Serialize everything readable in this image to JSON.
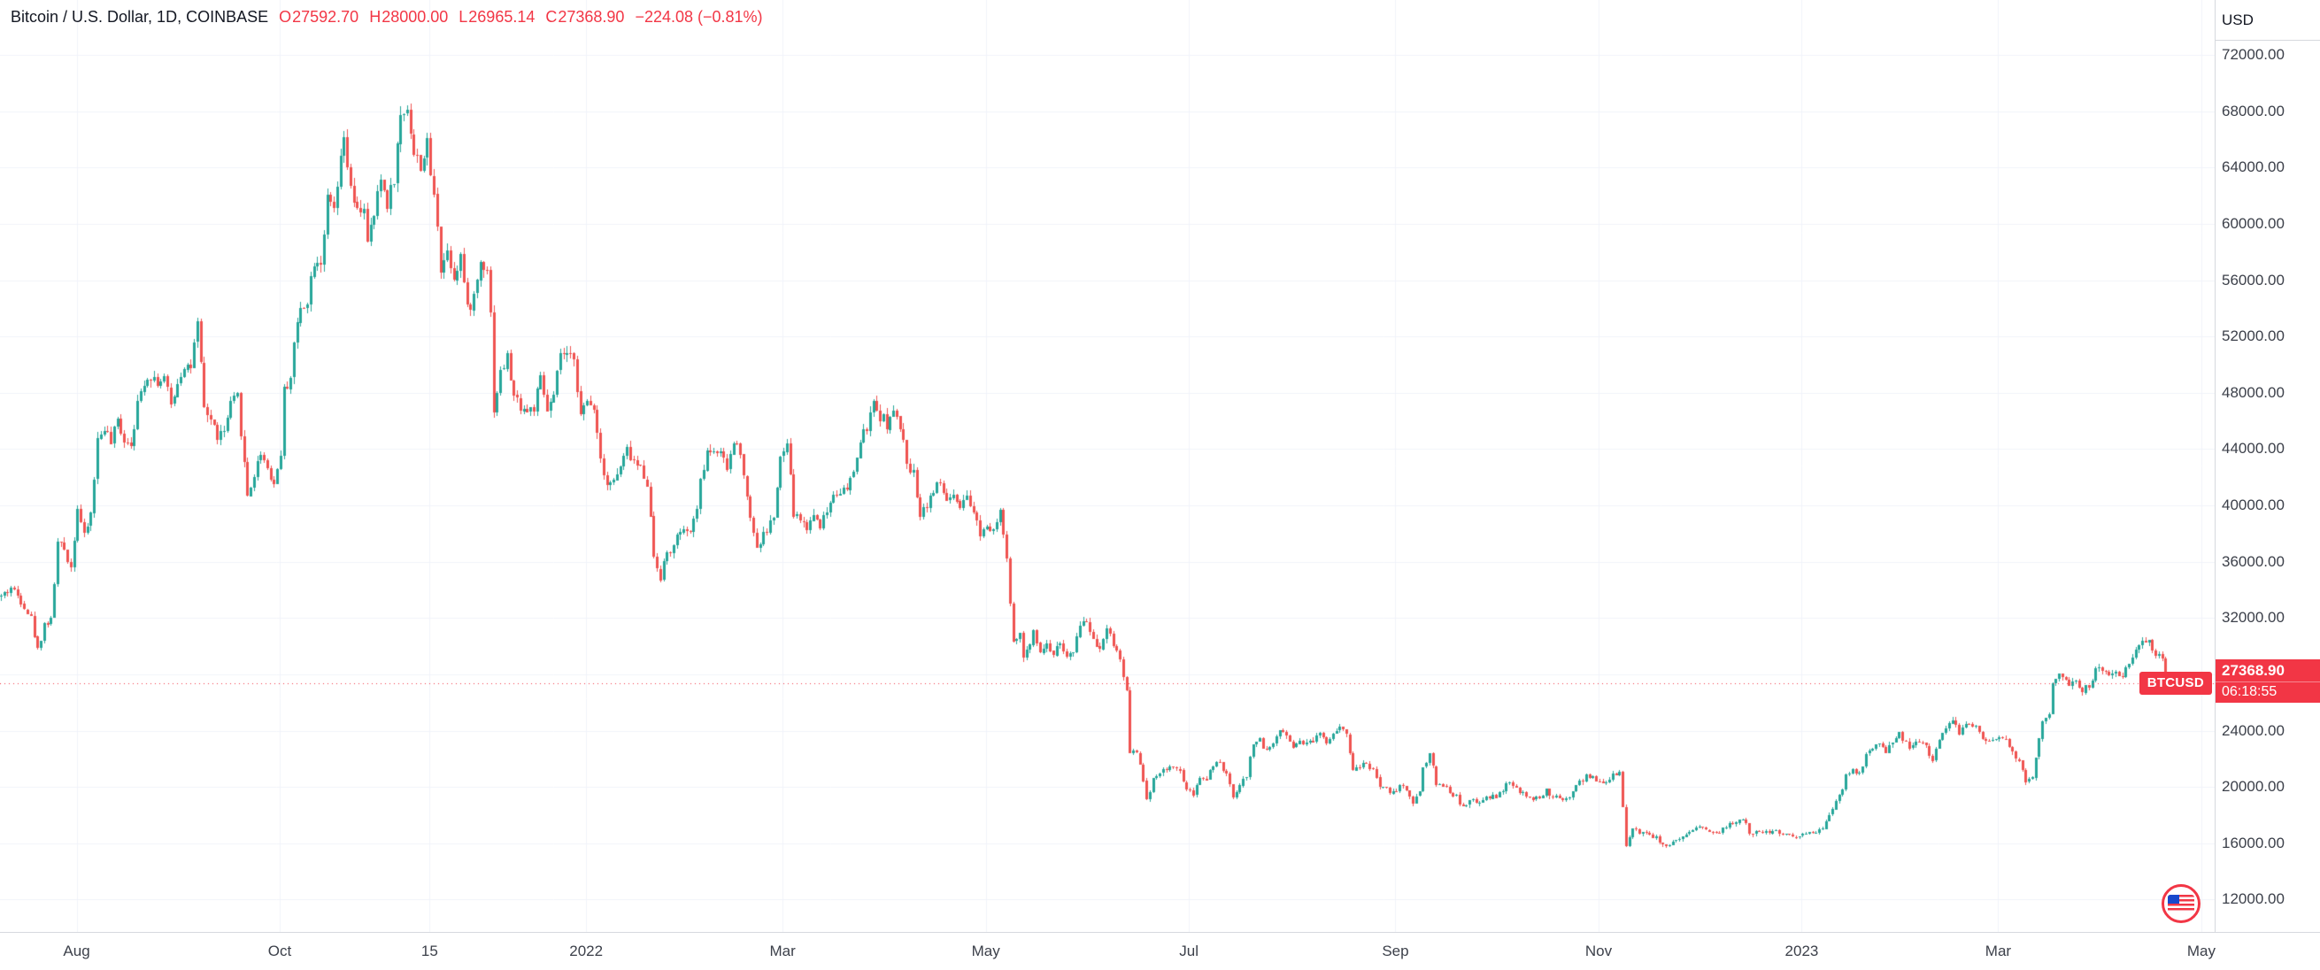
{
  "legend": {
    "title": "Bitcoin / U.S. Dollar, 1D, COINBASE",
    "open_label": "O",
    "open": "27592.70",
    "high_label": "H",
    "high": "28000.00",
    "low_label": "L",
    "low": "26965.14",
    "close_label": "C",
    "close": "27368.90",
    "change": "−224.08 (−0.81%)"
  },
  "price_axis": {
    "currency": "USD",
    "labels": [
      "72000.00",
      "68000.00",
      "64000.00",
      "60000.00",
      "56000.00",
      "52000.00",
      "48000.00",
      "44000.00",
      "40000.00",
      "36000.00",
      "32000.00",
      "28000.00",
      "24000.00",
      "20000.00",
      "16000.00",
      "12000.00"
    ]
  },
  "price_line": {
    "symbol_tag": "BTCUSD",
    "value": "27368.90",
    "countdown": "06:18:55"
  },
  "time_axis": {
    "labels": [
      {
        "text": "Aug",
        "day": 23
      },
      {
        "text": "Oct",
        "day": 84
      },
      {
        "text": "15",
        "day": 129
      },
      {
        "text": "2022",
        "day": 176
      },
      {
        "text": "Mar",
        "day": 235
      },
      {
        "text": "May",
        "day": 296
      },
      {
        "text": "Jul",
        "day": 357
      },
      {
        "text": "Sep",
        "day": 419
      },
      {
        "text": "Nov",
        "day": 480
      },
      {
        "text": "2023",
        "day": 541
      },
      {
        "text": "Mar",
        "day": 600
      },
      {
        "text": "May",
        "day": 661
      }
    ]
  },
  "colors": {
    "up": "#26a69a",
    "down": "#ef5350",
    "accent_red": "#f23645",
    "grid": "#f0f3fa",
    "axis_border": "#d6d9de",
    "axis_text": "#3c404a",
    "title_text": "#131722"
  },
  "chart_data": {
    "type": "candlestick",
    "symbol": "BTCUSD",
    "timeframe": "1D",
    "exchange": "COINBASE",
    "title": "Bitcoin / U.S. Dollar",
    "start_date": "2021-07-09",
    "days": 651,
    "visible_days": 665,
    "ylim": [
      9700,
      75900
    ],
    "grid_prices": [
      72000,
      68000,
      64000,
      60000,
      56000,
      52000,
      48000,
      44000,
      40000,
      36000,
      32000,
      28000,
      24000,
      20000,
      16000,
      12000
    ],
    "last_price": 27368.9,
    "last_candle": {
      "open": 27592.7,
      "high": 28000.0,
      "low": 26965.14,
      "close": 27368.9
    },
    "seed": 42,
    "close_jitter": 0.018,
    "wick_jitter": 0.014,
    "anchors": [
      [
        0,
        33500
      ],
      [
        3,
        34200
      ],
      [
        6,
        33300
      ],
      [
        9,
        32000
      ],
      [
        11,
        29700
      ],
      [
        13,
        31600
      ],
      [
        15,
        31800
      ],
      [
        17,
        37300
      ],
      [
        19,
        36900
      ],
      [
        21,
        35600
      ],
      [
        23,
        39900
      ],
      [
        25,
        37700
      ],
      [
        27,
        39400
      ],
      [
        29,
        44600
      ],
      [
        31,
        45600
      ],
      [
        33,
        44400
      ],
      [
        35,
        46000
      ],
      [
        37,
        44700
      ],
      [
        39,
        44500
      ],
      [
        41,
        47100
      ],
      [
        43,
        48900
      ],
      [
        45,
        49300
      ],
      [
        47,
        48800
      ],
      [
        49,
        49000
      ],
      [
        51,
        47100
      ],
      [
        53,
        48800
      ],
      [
        55,
        50000
      ],
      [
        57,
        49900
      ],
      [
        59,
        52700
      ],
      [
        61,
        46900
      ],
      [
        63,
        46100
      ],
      [
        65,
        44900
      ],
      [
        67,
        45200
      ],
      [
        69,
        47100
      ],
      [
        71,
        47700
      ],
      [
        73,
        42900
      ],
      [
        74,
        40700
      ],
      [
        76,
        42200
      ],
      [
        78,
        43800
      ],
      [
        80,
        42700
      ],
      [
        82,
        41500
      ],
      [
        84,
        43800
      ],
      [
        85,
        48100
      ],
      [
        87,
        49200
      ],
      [
        88,
        51500
      ],
      [
        90,
        54000
      ],
      [
        92,
        54700
      ],
      [
        94,
        57500
      ],
      [
        96,
        57400
      ],
      [
        98,
        61600
      ],
      [
        100,
        60900
      ],
      [
        102,
        64300
      ],
      [
        103,
        66000
      ],
      [
        105,
        62300
      ],
      [
        107,
        60700
      ],
      [
        109,
        61300
      ],
      [
        110,
        58500
      ],
      [
        112,
        60600
      ],
      [
        114,
        63200
      ],
      [
        116,
        61500
      ],
      [
        118,
        63300
      ],
      [
        120,
        67600
      ],
      [
        122,
        68400
      ],
      [
        124,
        64900
      ],
      [
        126,
        64200
      ],
      [
        128,
        65500
      ],
      [
        129,
        63600
      ],
      [
        131,
        60100
      ],
      [
        132,
        56900
      ],
      [
        134,
        58100
      ],
      [
        136,
        56300
      ],
      [
        138,
        57800
      ],
      [
        140,
        53800
      ],
      [
        142,
        54800
      ],
      [
        144,
        57300
      ],
      [
        146,
        57000
      ],
      [
        147,
        53600
      ],
      [
        148,
        46900
      ],
      [
        150,
        49400
      ],
      [
        152,
        50500
      ],
      [
        154,
        47700
      ],
      [
        156,
        47100
      ],
      [
        158,
        46700
      ],
      [
        160,
        46900
      ],
      [
        162,
        48900
      ],
      [
        164,
        46700
      ],
      [
        166,
        47600
      ],
      [
        168,
        50800
      ],
      [
        170,
        50400
      ],
      [
        172,
        50700
      ],
      [
        174,
        46300
      ],
      [
        176,
        47300
      ],
      [
        178,
        47100
      ],
      [
        180,
        43400
      ],
      [
        182,
        41600
      ],
      [
        184,
        41700
      ],
      [
        186,
        42700
      ],
      [
        188,
        43900
      ],
      [
        190,
        43100
      ],
      [
        192,
        42600
      ],
      [
        194,
        41700
      ],
      [
        196,
        36400
      ],
      [
        198,
        35000
      ],
      [
        200,
        36600
      ],
      [
        202,
        37000
      ],
      [
        204,
        38200
      ],
      [
        206,
        37900
      ],
      [
        208,
        38700
      ],
      [
        210,
        41500
      ],
      [
        212,
        43900
      ],
      [
        214,
        44000
      ],
      [
        216,
        43500
      ],
      [
        218,
        42600
      ],
      [
        220,
        44500
      ],
      [
        222,
        44000
      ],
      [
        224,
        40500
      ],
      [
        227,
        37000
      ],
      [
        230,
        38300
      ],
      [
        232,
        39200
      ],
      [
        234,
        43200
      ],
      [
        236,
        44400
      ],
      [
        238,
        39400
      ],
      [
        240,
        39000
      ],
      [
        242,
        38400
      ],
      [
        244,
        39400
      ],
      [
        246,
        38700
      ],
      [
        248,
        39600
      ],
      [
        250,
        40900
      ],
      [
        252,
        41100
      ],
      [
        254,
        41000
      ],
      [
        256,
        42400
      ],
      [
        258,
        44500
      ],
      [
        260,
        45600
      ],
      [
        262,
        47100
      ],
      [
        264,
        46400
      ],
      [
        266,
        45800
      ],
      [
        268,
        46600
      ],
      [
        270,
        45500
      ],
      [
        272,
        43200
      ],
      [
        274,
        42200
      ],
      [
        276,
        39500
      ],
      [
        278,
        40100
      ],
      [
        280,
        41100
      ],
      [
        282,
        41500
      ],
      [
        284,
        40400
      ],
      [
        286,
        40500
      ],
      [
        288,
        39700
      ],
      [
        290,
        40400
      ],
      [
        292,
        39500
      ],
      [
        294,
        38100
      ],
      [
        296,
        38600
      ],
      [
        298,
        38500
      ],
      [
        300,
        39700
      ],
      [
        302,
        36000
      ],
      [
        304,
        30100
      ],
      [
        306,
        31000
      ],
      [
        307,
        29000
      ],
      [
        309,
        30100
      ],
      [
        310,
        31300
      ],
      [
        312,
        29700
      ],
      [
        314,
        30100
      ],
      [
        316,
        29500
      ],
      [
        318,
        30300
      ],
      [
        320,
        29200
      ],
      [
        322,
        29400
      ],
      [
        324,
        31700
      ],
      [
        326,
        31800
      ],
      [
        328,
        30500
      ],
      [
        330,
        29900
      ],
      [
        332,
        31400
      ],
      [
        334,
        30200
      ],
      [
        336,
        29100
      ],
      [
        338,
        26800
      ],
      [
        339,
        22500
      ],
      [
        341,
        22600
      ],
      [
        343,
        20400
      ],
      [
        344,
        19000
      ],
      [
        346,
        20600
      ],
      [
        348,
        21100
      ],
      [
        350,
        21200
      ],
      [
        352,
        21500
      ],
      [
        354,
        21000
      ],
      [
        356,
        19900
      ],
      [
        358,
        19300
      ],
      [
        360,
        20700
      ],
      [
        362,
        20600
      ],
      [
        364,
        21600
      ],
      [
        366,
        21600
      ],
      [
        368,
        20800
      ],
      [
        370,
        19300
      ],
      [
        372,
        20100
      ],
      [
        374,
        20800
      ],
      [
        376,
        23200
      ],
      [
        378,
        23300
      ],
      [
        380,
        22500
      ],
      [
        382,
        23200
      ],
      [
        384,
        24000
      ],
      [
        386,
        23800
      ],
      [
        388,
        22800
      ],
      [
        390,
        23300
      ],
      [
        392,
        23200
      ],
      [
        394,
        23300
      ],
      [
        396,
        23800
      ],
      [
        398,
        23200
      ],
      [
        400,
        23900
      ],
      [
        402,
        24300
      ],
      [
        404,
        23900
      ],
      [
        406,
        21100
      ],
      [
        408,
        21500
      ],
      [
        410,
        21600
      ],
      [
        412,
        21300
      ],
      [
        414,
        20000
      ],
      [
        416,
        19800
      ],
      [
        418,
        19600
      ],
      [
        420,
        20100
      ],
      [
        422,
        19800
      ],
      [
        424,
        18800
      ],
      [
        426,
        19800
      ],
      [
        427,
        21300
      ],
      [
        429,
        22400
      ],
      [
        431,
        20200
      ],
      [
        433,
        20200
      ],
      [
        435,
        19700
      ],
      [
        437,
        19300
      ],
      [
        439,
        18500
      ],
      [
        441,
        19000
      ],
      [
        443,
        18900
      ],
      [
        445,
        19100
      ],
      [
        447,
        19200
      ],
      [
        449,
        19400
      ],
      [
        451,
        19600
      ],
      [
        452,
        20300
      ],
      [
        454,
        20100
      ],
      [
        456,
        19600
      ],
      [
        458,
        19400
      ],
      [
        460,
        19100
      ],
      [
        462,
        19200
      ],
      [
        464,
        19700
      ],
      [
        466,
        19300
      ],
      [
        468,
        19200
      ],
      [
        470,
        19100
      ],
      [
        472,
        19600
      ],
      [
        474,
        20300
      ],
      [
        476,
        20800
      ],
      [
        478,
        20600
      ],
      [
        480,
        20500
      ],
      [
        482,
        20200
      ],
      [
        484,
        21100
      ],
      [
        486,
        20900
      ],
      [
        487,
        18500
      ],
      [
        488,
        15900
      ],
      [
        490,
        17100
      ],
      [
        492,
        16800
      ],
      [
        494,
        16700
      ],
      [
        496,
        16500
      ],
      [
        498,
        16200
      ],
      [
        500,
        15800
      ],
      [
        502,
        16000
      ],
      [
        504,
        16200
      ],
      [
        506,
        16500
      ],
      [
        508,
        16900
      ],
      [
        510,
        17100
      ],
      [
        512,
        17000
      ],
      [
        514,
        16900
      ],
      [
        516,
        16800
      ],
      [
        518,
        17200
      ],
      [
        520,
        17400
      ],
      [
        522,
        17800
      ],
      [
        524,
        17400
      ],
      [
        525,
        16600
      ],
      [
        527,
        16700
      ],
      [
        529,
        16800
      ],
      [
        531,
        16800
      ],
      [
        533,
        16800
      ],
      [
        535,
        16700
      ],
      [
        537,
        16600
      ],
      [
        539,
        16500
      ],
      [
        541,
        16600
      ],
      [
        543,
        16700
      ],
      [
        545,
        16900
      ],
      [
        547,
        17000
      ],
      [
        549,
        17900
      ],
      [
        551,
        19000
      ],
      [
        553,
        19900
      ],
      [
        554,
        20900
      ],
      [
        556,
        21100
      ],
      [
        558,
        20900
      ],
      [
        560,
        22200
      ],
      [
        562,
        22700
      ],
      [
        564,
        23000
      ],
      [
        566,
        22600
      ],
      [
        568,
        23000
      ],
      [
        570,
        23700
      ],
      [
        572,
        23100
      ],
      [
        574,
        22800
      ],
      [
        576,
        23300
      ],
      [
        578,
        22900
      ],
      [
        580,
        21800
      ],
      [
        582,
        23500
      ],
      [
        584,
        24300
      ],
      [
        586,
        24600
      ],
      [
        588,
        23900
      ],
      [
        590,
        24600
      ],
      [
        592,
        24400
      ],
      [
        594,
        23900
      ],
      [
        596,
        23200
      ],
      [
        598,
        23500
      ],
      [
        600,
        23600
      ],
      [
        602,
        23500
      ],
      [
        604,
        22400
      ],
      [
        606,
        21800
      ],
      [
        608,
        20300
      ],
      [
        610,
        20500
      ],
      [
        611,
        22200
      ],
      [
        613,
        24700
      ],
      [
        615,
        25000
      ],
      [
        616,
        27400
      ],
      [
        618,
        28000
      ],
      [
        620,
        27800
      ],
      [
        621,
        27300
      ],
      [
        623,
        27500
      ],
      [
        625,
        26800
      ],
      [
        627,
        27200
      ],
      [
        629,
        28300
      ],
      [
        631,
        28200
      ],
      [
        633,
        27900
      ],
      [
        635,
        28200
      ],
      [
        637,
        28000
      ],
      [
        639,
        28600
      ],
      [
        641,
        30000
      ],
      [
        643,
        30400
      ],
      [
        645,
        30300
      ],
      [
        647,
        29300
      ],
      [
        649,
        29100
      ],
      [
        650,
        28250
      ],
      [
        651,
        27368.9
      ]
    ]
  }
}
